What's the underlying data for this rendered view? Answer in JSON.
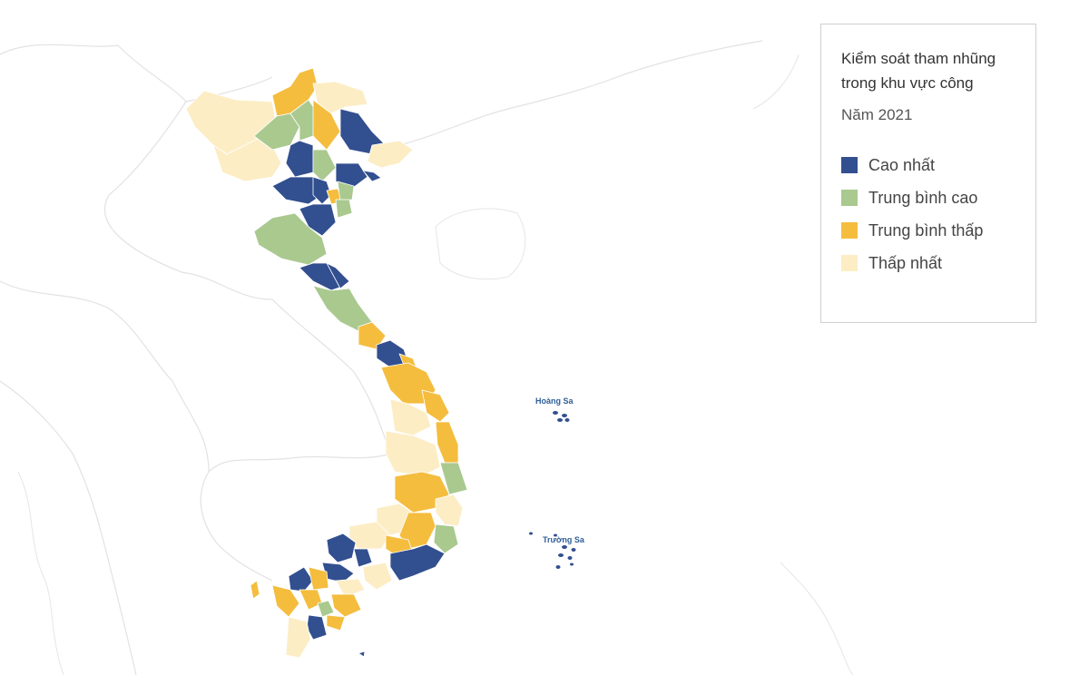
{
  "legend": {
    "title": "Kiểm soát tham nhũng trong khu vực công",
    "subtitle": "Năm 2021",
    "items": [
      {
        "key": "high",
        "label": "Cao nhất",
        "color": "#324f8f"
      },
      {
        "key": "mid_high",
        "label": "Trung bình cao",
        "color": "#a9c98f"
      },
      {
        "key": "mid_low",
        "label": "Trung bình thấp",
        "color": "#f4bd3e"
      },
      {
        "key": "low",
        "label": "Thấp nhất",
        "color": "#fcedc5"
      }
    ]
  },
  "islands": {
    "paracel_label": "Hoàng Sa",
    "spratly_label": "Trường Sa",
    "color": "#324f8f"
  }
}
